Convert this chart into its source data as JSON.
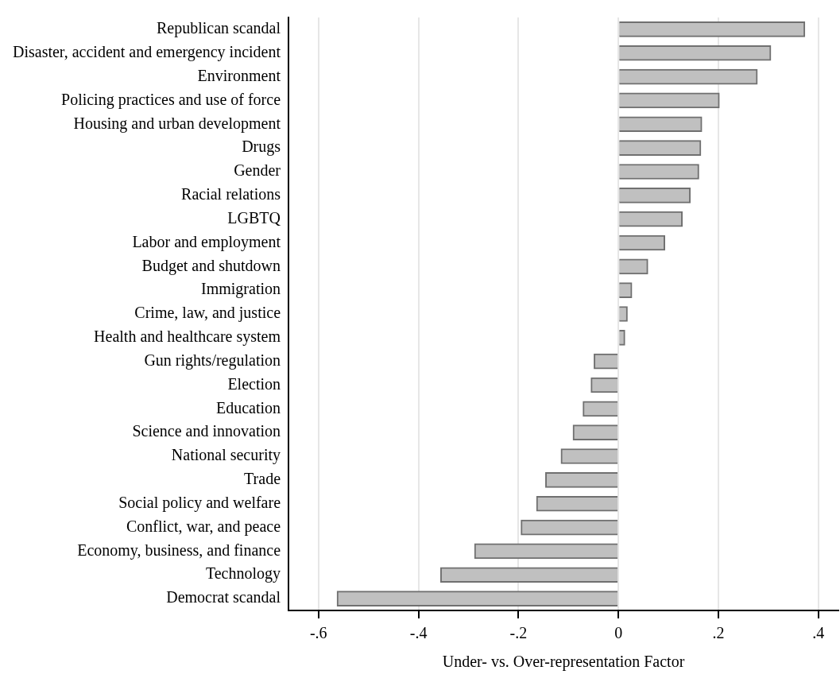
{
  "chart_data": {
    "type": "bar",
    "orientation": "horizontal",
    "xlabel": "Under- vs. Over-representation Factor",
    "categories": [
      "Republican scandal",
      "Disaster, accident and emergency incident",
      "Environment",
      "Policing practices and use of force",
      "Housing and urban development",
      "Drugs",
      "Gender",
      "Racial relations",
      "LGBTQ",
      "Labor and employment",
      "Budget and shutdown",
      "Immigration",
      "Crime, law, and justice",
      "Health and healthcare system",
      "Gun rights/regulation",
      "Election",
      "Education",
      "Science and innovation",
      "National security",
      "Trade",
      "Social policy and welfare",
      "Conflict, war, and peace",
      "Economy, business, and finance",
      "Technology",
      "Democrat scandal"
    ],
    "values": [
      0.373,
      0.305,
      0.278,
      0.202,
      0.167,
      0.165,
      0.161,
      0.144,
      0.128,
      0.093,
      0.059,
      0.027,
      0.018,
      0.013,
      -0.049,
      -0.055,
      -0.071,
      -0.091,
      -0.115,
      -0.146,
      -0.164,
      -0.195,
      -0.288,
      -0.356,
      -0.563
    ],
    "color": "#c0c0c0",
    "xlim": [
      -0.66,
      0.44
    ],
    "xticks": [
      {
        "value": -0.6,
        "label": "-.6"
      },
      {
        "value": -0.4,
        "label": "-.4"
      },
      {
        "value": -0.2,
        "label": "-.2"
      },
      0,
      {
        "value": 0.2,
        "label": ".2"
      },
      {
        "value": 0.4,
        "label": ".4"
      }
    ],
    "grid": "x",
    "legend": false
  }
}
